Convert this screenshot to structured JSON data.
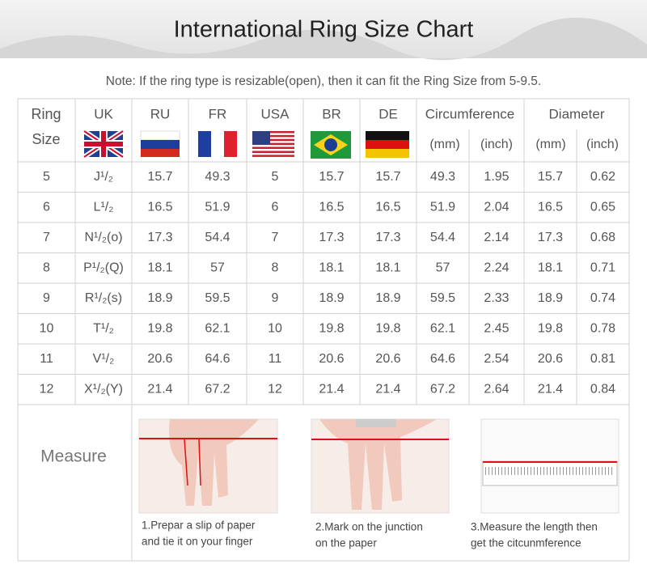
{
  "title": "International Ring Size Chart",
  "note": "Note: If the ring type is resizable(open), then it can fit the Ring Size from 5-9.5.",
  "table": {
    "headers": [
      "Ring",
      "Size",
      "UK",
      "RU",
      "FR",
      "USA",
      "BR",
      "DE",
      "Circumference",
      "Diameter"
    ],
    "subheaders": [
      "(mm)",
      "(inch)",
      "(mm)",
      "(inch)"
    ],
    "rows": [
      [
        "5",
        "J¹/₂",
        "15.7",
        "49.3",
        "5",
        "15.7",
        "15.7",
        "49.3",
        "1.95",
        "15.7",
        "0.62"
      ],
      [
        "6",
        "L¹/₂",
        "16.5",
        "51.9",
        "6",
        "16.5",
        "16.5",
        "51.9",
        "2.04",
        "16.5",
        "0.65"
      ],
      [
        "7",
        "N¹/₂(o)",
        "17.3",
        "54.4",
        "7",
        "17.3",
        "17.3",
        "54.4",
        "2.14",
        "17.3",
        "0.68"
      ],
      [
        "8",
        "P¹/₂(Q)",
        "18.1",
        "57",
        "8",
        "18.1",
        "18.1",
        "57",
        "2.24",
        "18.1",
        "0.71"
      ],
      [
        "9",
        "R¹/₂(s)",
        "18.9",
        "59.5",
        "9",
        "18.9",
        "18.9",
        "59.5",
        "2.33",
        "18.9",
        "0.74"
      ],
      [
        "10",
        "T¹/₂",
        "19.8",
        "62.1",
        "10",
        "19.8",
        "19.8",
        "62.1",
        "2.45",
        "19.8",
        "0.78"
      ],
      [
        "11",
        "V¹/₂",
        "20.6",
        "64.6",
        "11",
        "20.6",
        "20.6",
        "64.6",
        "2.54",
        "20.6",
        "0.81"
      ],
      [
        "12",
        "X¹/₂(Y)",
        "21.4",
        "67.2",
        "12",
        "21.4",
        "21.4",
        "67.2",
        "2.64",
        "21.4",
        "0.84"
      ]
    ]
  },
  "measure": {
    "label": "Measure",
    "steps": [
      [
        "1.Prepar a slip of paper",
        "and tie it on your finger"
      ],
      [
        "2.Mark on the junction",
        "on the paper"
      ],
      [
        "3.Measure the length then",
        "get the citcunmference"
      ]
    ]
  }
}
